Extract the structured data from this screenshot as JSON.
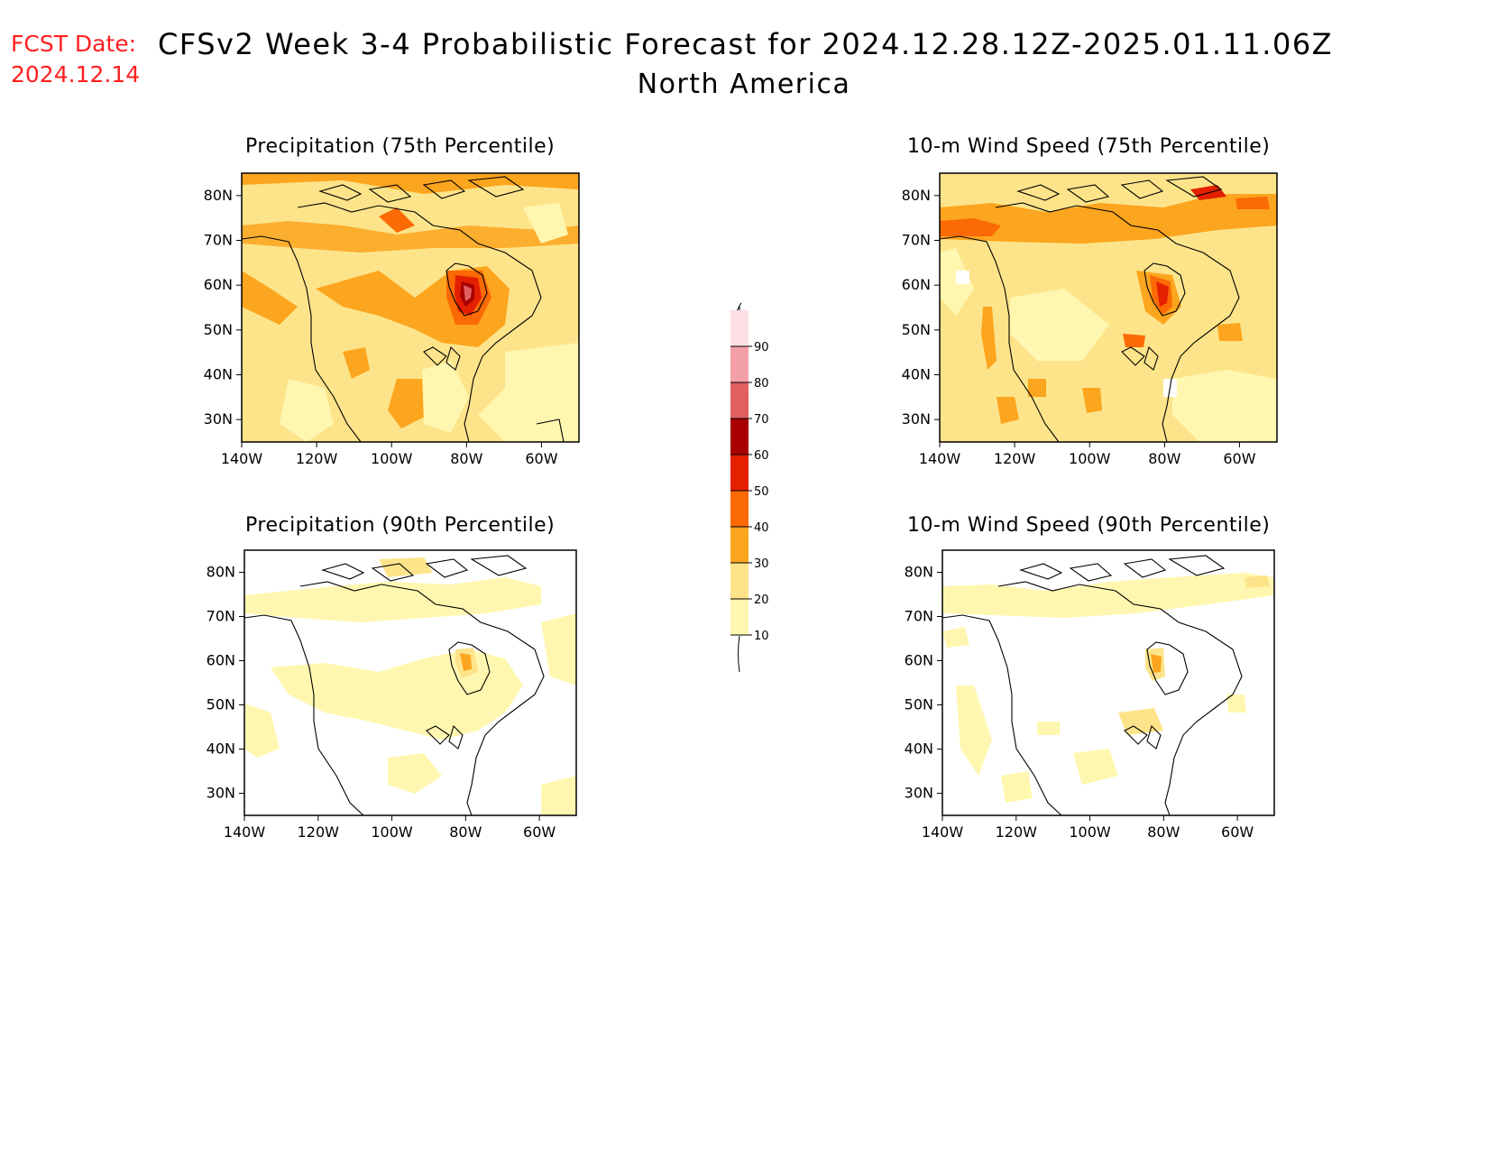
{
  "header": {
    "fcst_label": "FCST Date:",
    "fcst_date": "2024.12.14",
    "title": "CFSv2 Week 3-4 Probabilistic Forecast for 2024.12.28.12Z-2025.01.11.06Z",
    "subtitle": "North America"
  },
  "axes": {
    "lat_labels": [
      "80N",
      "70N",
      "60N",
      "50N",
      "40N",
      "30N"
    ],
    "lon_labels": [
      "140W",
      "120W",
      "100W",
      "80W",
      "60W"
    ]
  },
  "panels": [
    {
      "id": "precip-75",
      "title": "Precipitation (75th Percentile)"
    },
    {
      "id": "wind-75",
      "title": "10-m Wind Speed (75th Percentile)"
    },
    {
      "id": "precip-90",
      "title": "Precipitation (90th Percentile)"
    },
    {
      "id": "wind-90",
      "title": "10-m Wind Speed (90th Percentile)"
    }
  ],
  "colorbar": {
    "levels": [
      "10",
      "20",
      "30",
      "40",
      "50",
      "60",
      "70",
      "80",
      "90"
    ],
    "colors": [
      "#fff7b0",
      "#fde48a",
      "#fca51e",
      "#fb6a04",
      "#e42000",
      "#a80000",
      "#e06060",
      "#f4a0a8",
      "#fde0e4"
    ]
  }
}
